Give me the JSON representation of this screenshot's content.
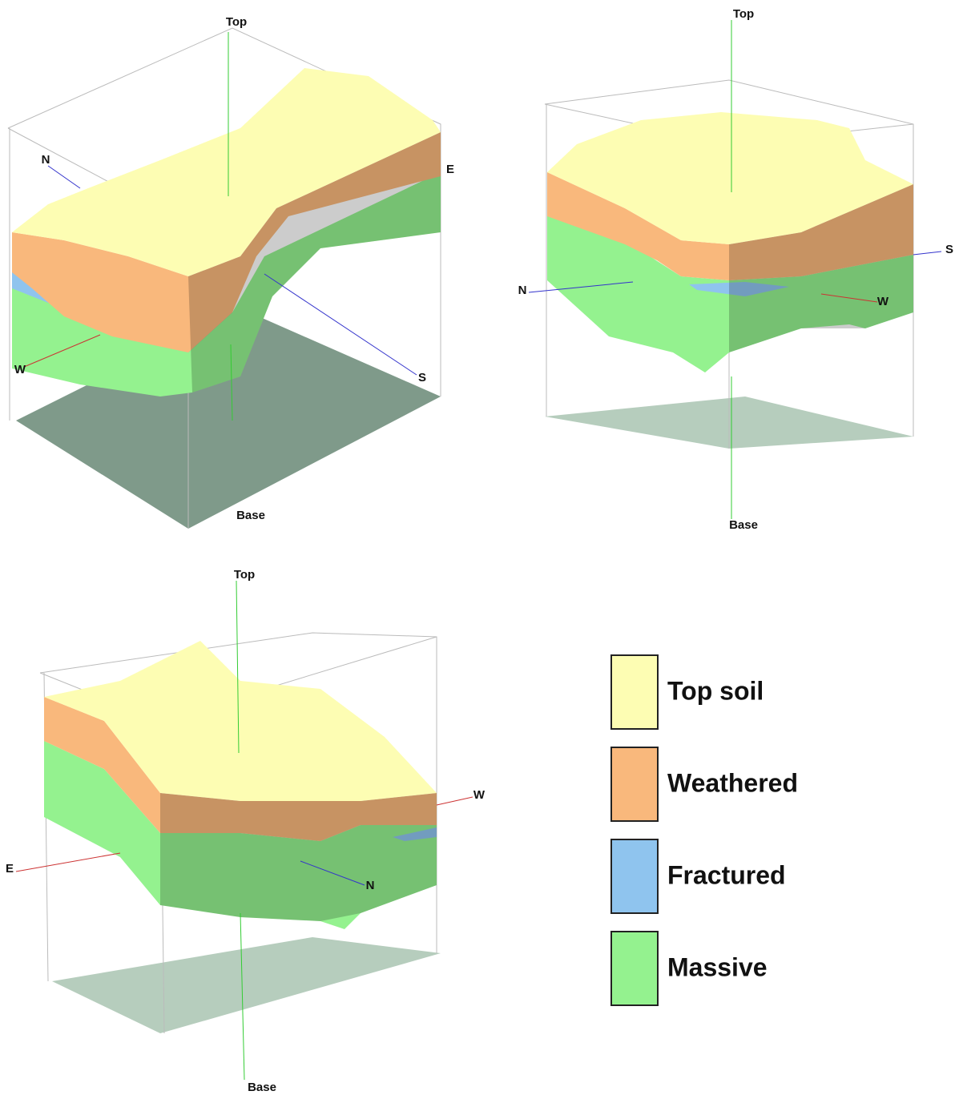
{
  "panels": [
    {
      "top": "Top",
      "base": "Base",
      "north": "N",
      "east": "E",
      "west": "W",
      "south": "S"
    },
    {
      "top": "Top",
      "base": "Base",
      "north": "N",
      "west": "W",
      "south": "S"
    },
    {
      "top": "Top",
      "base": "Base",
      "east": "E",
      "west": "W",
      "north": "N"
    }
  ],
  "legend": [
    {
      "label": "Top soil",
      "color": "#fdfdb3"
    },
    {
      "label": "Weathered",
      "color": "#f9b87c"
    },
    {
      "label": "Fractured",
      "color": "#8fc4ee"
    },
    {
      "label": "Massive",
      "color": "#94f28f"
    }
  ]
}
